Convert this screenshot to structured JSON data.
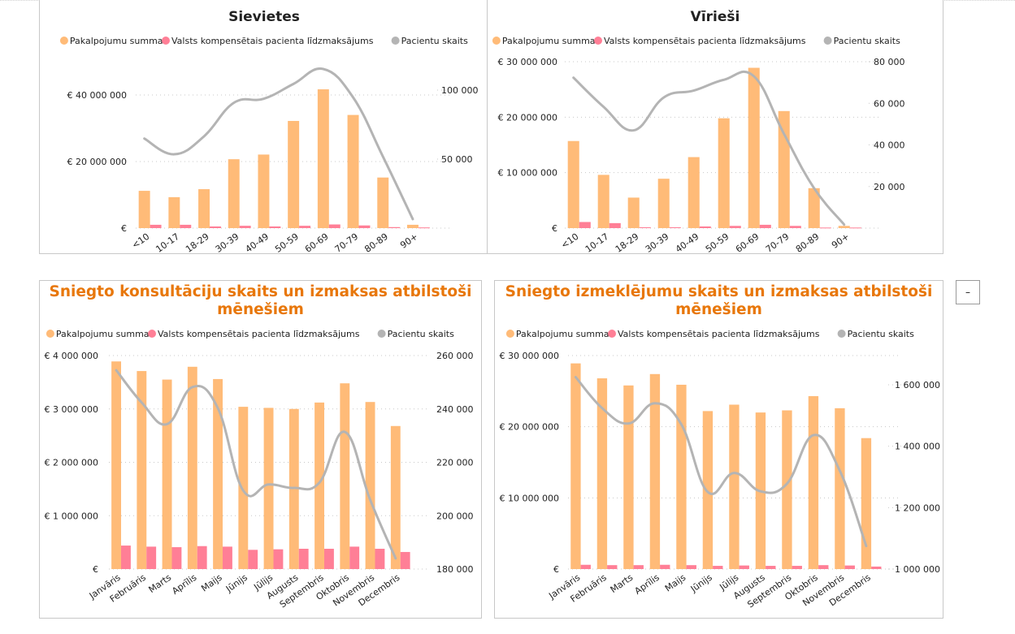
{
  "colors": {
    "service_sum": "#ffbb78",
    "compensation": "#ff7f96",
    "patients": "#b4b4b4",
    "title_orange": "#e8770a",
    "grid": "#c8c8c8"
  },
  "legend": {
    "service_sum": "Pakalpojumu summa",
    "compensation": "Valsts kompensētais pacienta līdzmaksājums",
    "patients": "Pacientu skaits"
  },
  "collapse_button": {
    "label": "–"
  },
  "chart_data": [
    {
      "id": "sievietes",
      "type": "bar",
      "title_lines": [
        "Sievietes"
      ],
      "title_style": "dark",
      "xlabel": "",
      "ylabel": "",
      "categories": [
        "<10",
        "10-17",
        "18-29",
        "30-39",
        "40-49",
        "50-59",
        "60-69",
        "70-79",
        "80-89",
        "90+"
      ],
      "series": [
        {
          "name": "Pakalpojumu summa",
          "kind": "bar",
          "axis": "left",
          "values": [
            11200000,
            9300000,
            11700000,
            20700000,
            22100000,
            32200000,
            41700000,
            34000000,
            15200000,
            1000000
          ]
        },
        {
          "name": "Valsts kompensētais pacienta līdzmaksājums",
          "kind": "bar",
          "axis": "left",
          "values": [
            1000000,
            1000000,
            500000,
            700000,
            500000,
            700000,
            1100000,
            800000,
            300000,
            200000
          ]
        },
        {
          "name": "Pacientu skaits",
          "kind": "line",
          "axis": "right",
          "values": [
            64900,
            53500,
            66500,
            90800,
            93700,
            104500,
            115300,
            94700,
            51800,
            6500
          ]
        }
      ],
      "left_axis": {
        "min": 0,
        "max": 40000000,
        "ticks": [
          0,
          20000000,
          40000000
        ],
        "tick_labels": [
          "€",
          "€ 20 000 000",
          "€ 40 000 000"
        ]
      },
      "right_axis": {
        "min": 0,
        "max": 100000,
        "ticks": [
          50000,
          100000
        ],
        "tick_labels": [
          "50 000",
          "100 000"
        ]
      },
      "grid": true,
      "legend_position": "top"
    },
    {
      "id": "virieshi",
      "type": "bar",
      "title_lines": [
        "Vīrieši"
      ],
      "title_style": "dark",
      "xlabel": "",
      "ylabel": "",
      "categories": [
        "<10",
        "10-17",
        "18-29",
        "30-39",
        "40-49",
        "50-59",
        "60-69",
        "70-79",
        "80-89",
        "90+"
      ],
      "series": [
        {
          "name": "Pakalpojumu summa",
          "kind": "bar",
          "axis": "left",
          "values": [
            15700000,
            9600000,
            5500000,
            8900000,
            12800000,
            19800000,
            28900000,
            21100000,
            7200000,
            400000
          ]
        },
        {
          "name": "Valsts kompensētais pacienta līdzmaksājums",
          "kind": "bar",
          "axis": "left",
          "values": [
            1100000,
            900000,
            150000,
            150000,
            300000,
            400000,
            600000,
            400000,
            100000,
            100000
          ]
        },
        {
          "name": "Pacientu skaits",
          "kind": "line",
          "axis": "right",
          "values": [
            72300,
            58300,
            47000,
            62800,
            66100,
            71300,
            73000,
            45300,
            19200,
            1700
          ]
        }
      ],
      "left_axis": {
        "min": 0,
        "max": 30000000,
        "ticks": [
          0,
          10000000,
          20000000,
          30000000
        ],
        "tick_labels": [
          "€",
          "€ 10 000 000",
          "€ 20 000 000",
          "€ 30 000 000"
        ]
      },
      "right_axis": {
        "min": 0,
        "max": 80000,
        "ticks": [
          20000,
          40000,
          60000,
          80000
        ],
        "tick_labels": [
          "20 000",
          "40 000",
          "60 000",
          "80 000"
        ]
      },
      "grid": true,
      "legend_position": "top"
    },
    {
      "id": "konsultacijas",
      "type": "bar",
      "title_lines": [
        "Sniegto konsultāciju skaits un izmaksas atbilstoši",
        "mēnešiem"
      ],
      "title_style": "orange",
      "xlabel": "",
      "ylabel": "",
      "categories": [
        "Janvāris",
        "Februāris",
        "Marts",
        "Aprīlis",
        "Maijs",
        "Jūnijs",
        "Jūlijs",
        "Augusts",
        "Septembris",
        "Oktobris",
        "Novembris",
        "Decembris"
      ],
      "series": [
        {
          "name": "Pakalpojumu summa",
          "kind": "bar",
          "axis": "left",
          "values": [
            3890000,
            3710000,
            3550000,
            3790000,
            3560000,
            3040000,
            3020000,
            3000000,
            3120000,
            3480000,
            3130000,
            2680000
          ]
        },
        {
          "name": "Valsts kompensētais pacienta līdzmaksājums",
          "kind": "bar",
          "axis": "left",
          "values": [
            440000,
            420000,
            410000,
            430000,
            420000,
            360000,
            370000,
            380000,
            380000,
            420000,
            380000,
            320000
          ]
        },
        {
          "name": "Pacientu skaits",
          "kind": "line",
          "axis": "right",
          "values": [
            254500,
            242400,
            234300,
            248200,
            240300,
            209400,
            211700,
            210400,
            212400,
            231400,
            205900,
            184000
          ]
        }
      ],
      "left_axis": {
        "min": 0,
        "max": 4000000,
        "ticks": [
          0,
          1000000,
          2000000,
          3000000,
          4000000
        ],
        "tick_labels": [
          "€",
          "€ 1 000 000",
          "€ 2 000 000",
          "€ 3 000 000",
          "€ 4 000 000"
        ]
      },
      "right_axis": {
        "min": 180000,
        "max": 260000,
        "ticks": [
          180000,
          200000,
          220000,
          240000,
          260000
        ],
        "tick_labels": [
          "180 000",
          "200 000",
          "220 000",
          "240 000",
          "260 000"
        ]
      },
      "grid": true,
      "legend_position": "top"
    },
    {
      "id": "izmeklejumi",
      "type": "bar",
      "title_lines": [
        "Sniegto izmeklējumu skaits un izmaksas atbilstoši",
        "mēnešiem"
      ],
      "title_style": "orange",
      "xlabel": "",
      "ylabel": "",
      "categories": [
        "Janvāris",
        "Februāris",
        "Marts",
        "Aprīlis",
        "Maijs",
        "Jūnijs",
        "Jūlijs",
        "Augusts",
        "Septembris",
        "Oktobris",
        "Novembris",
        "Decembris"
      ],
      "series": [
        {
          "name": "Pakalpojumu summa",
          "kind": "bar",
          "axis": "left",
          "values": [
            28900000,
            26800000,
            25800000,
            27400000,
            25900000,
            22200000,
            23100000,
            22000000,
            22300000,
            24300000,
            22600000,
            18400000
          ]
        },
        {
          "name": "Valsts kompensētais pacienta līdzmaksājums",
          "kind": "bar",
          "axis": "left",
          "values": [
            600000,
            550000,
            550000,
            600000,
            550000,
            450000,
            500000,
            450000,
            450000,
            550000,
            500000,
            350000
          ]
        },
        {
          "name": "Pacientu skaits",
          "kind": "line",
          "axis": "right",
          "values": [
            1625000,
            1524000,
            1474000,
            1540000,
            1471000,
            1251000,
            1313000,
            1253000,
            1278000,
            1436000,
            1320000,
            1075000
          ]
        }
      ],
      "left_axis": {
        "min": 0,
        "max": 30000000,
        "ticks": [
          0,
          10000000,
          20000000,
          30000000
        ],
        "tick_labels": [
          "€",
          "€ 10 000 000",
          "€ 20 000 000",
          "€ 30 000 000"
        ]
      },
      "right_axis": {
        "min": 1000000,
        "max": 1700000,
        "ticks": [
          1000000,
          1200000,
          1400000,
          1600000
        ],
        "tick_labels": [
          "1 000 000",
          "1 200 000",
          "1 400 000",
          "1 600 000"
        ]
      },
      "grid": true,
      "legend_position": "top"
    }
  ]
}
